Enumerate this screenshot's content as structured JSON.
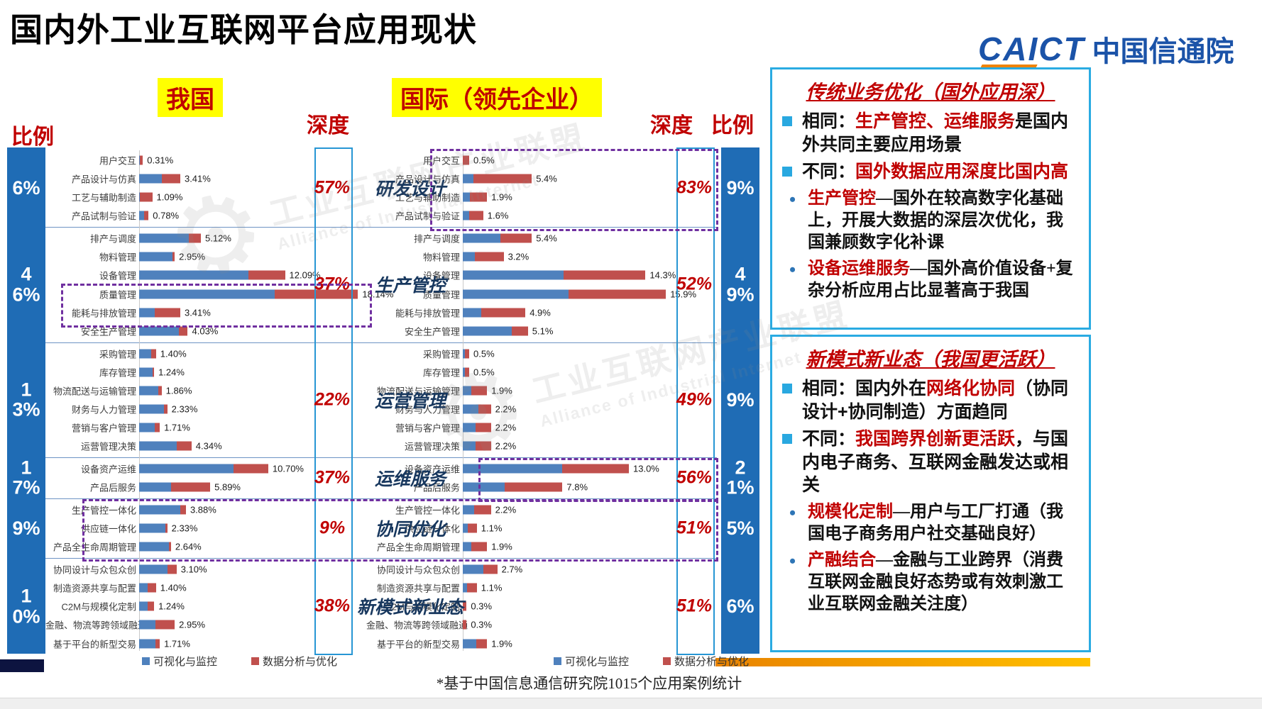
{
  "title": "国内外工业互联网平台应用现状",
  "logo": {
    "caict": "CAICT",
    "cn": "中国信通院"
  },
  "headers": {
    "china": "我国",
    "intl": "国际（领先企业）",
    "ratio": "比例",
    "depth": "深度"
  },
  "legend": {
    "viz": "可视化与监控",
    "ana": "数据分析与优化"
  },
  "footnote": "*基于中国信息通信研究院1015个应用案例统计",
  "watermark": {
    "line1": "工业互联网产业联盟",
    "line2": "Alliance of Industrial Internet"
  },
  "colors": {
    "bar_blue": "#4f81bd",
    "bar_red": "#c0504d",
    "ratio_col": "#1f6cb5",
    "depth_border": "#2796d4",
    "dashed": "#7030a0",
    "accent_red": "#c00000",
    "panel_border": "#2aabe2",
    "highlight_yellow": "#ffff00",
    "category_navy": "#17375e"
  },
  "chart_data": {
    "type": "bar",
    "unit": "%",
    "orientation": "horizontal",
    "series_names": [
      "可视化与监控",
      "数据分析与优化"
    ],
    "charts": [
      "我国",
      "国际（领先企业）"
    ],
    "groups": [
      {
        "name": "研发设计",
        "ratio_cn": "6%",
        "depth_cn": "57%",
        "depth_intl": "83%",
        "ratio_intl": "9%",
        "rows": [
          {
            "label": "用户交互",
            "cn": 0.31,
            "cn_d": "0.31%",
            "cn_b": 0.15,
            "intl": 0.5,
            "intl_d": "0.5%",
            "intl_b": 0.0
          },
          {
            "label": "产品设计与仿真",
            "cn": 3.41,
            "cn_d": "3.41%",
            "cn_b": 0.55,
            "intl": 5.4,
            "intl_d": "5.4%",
            "intl_b": 0.15
          },
          {
            "label": "工艺与辅助制造",
            "cn": 1.09,
            "cn_d": "1.09%",
            "cn_b": 0.05,
            "intl": 1.9,
            "intl_d": "1.9%",
            "intl_b": 0.3
          },
          {
            "label": "产品试制与验证",
            "cn": 0.78,
            "cn_d": "0.78%",
            "cn_b": 0.5,
            "intl": 1.6,
            "intl_d": "1.6%",
            "intl_b": 0.3
          }
        ]
      },
      {
        "name": "生产管控",
        "ratio_cn": "46%",
        "depth_cn": "37%",
        "depth_intl": "52%",
        "ratio_intl": "49%",
        "rows": [
          {
            "label": "排产与调度",
            "cn": 5.12,
            "cn_d": "5.12%",
            "cn_b": 0.8,
            "intl": 5.4,
            "intl_d": "5.4%",
            "intl_b": 0.55
          },
          {
            "label": "物料管理",
            "cn": 2.95,
            "cn_d": "2.95%",
            "cn_b": 0.93,
            "intl": 3.2,
            "intl_d": "3.2%",
            "intl_b": 0.3
          },
          {
            "label": "设备管理",
            "cn": 12.09,
            "cn_d": "12.09%",
            "cn_b": 0.75,
            "intl": 14.3,
            "intl_d": "14.3%",
            "intl_b": 0.55
          },
          {
            "label": "质量管理",
            "cn": 18.14,
            "cn_d": "18.14%",
            "cn_b": 0.62,
            "intl": 15.9,
            "intl_d": "15.9%",
            "intl_b": 0.52
          },
          {
            "label": "能耗与排放管理",
            "cn": 3.41,
            "cn_d": "3.41%",
            "cn_b": 0.38,
            "intl": 4.9,
            "intl_d": "4.9%",
            "intl_b": 0.3
          },
          {
            "label": "安全生产管理",
            "cn": 4.03,
            "cn_d": "4.03%",
            "cn_b": 0.82,
            "intl": 5.1,
            "intl_d": "5.1%",
            "intl_b": 0.75
          }
        ]
      },
      {
        "name": "运营管理",
        "ratio_cn": "13%",
        "depth_cn": "22%",
        "depth_intl": "49%",
        "ratio_intl": "9%",
        "rows": [
          {
            "label": "采购管理",
            "cn": 1.4,
            "cn_d": "1.40%",
            "cn_b": 0.7,
            "intl": 0.5,
            "intl_d": "0.5%",
            "intl_b": 0.35
          },
          {
            "label": "库存管理",
            "cn": 1.24,
            "cn_d": "1.24%",
            "cn_b": 0.88,
            "intl": 0.5,
            "intl_d": "0.5%",
            "intl_b": 0.35
          },
          {
            "label": "物流配送与运输管理",
            "cn": 1.86,
            "cn_d": "1.86%",
            "cn_b": 0.85,
            "intl": 1.9,
            "intl_d": "1.9%",
            "intl_b": 0.35
          },
          {
            "label": "财务与人力管理",
            "cn": 2.33,
            "cn_d": "2.33%",
            "cn_b": 0.88,
            "intl": 2.2,
            "intl_d": "2.2%",
            "intl_b": 0.55
          },
          {
            "label": "营销与客户管理",
            "cn": 1.71,
            "cn_d": "1.71%",
            "cn_b": 0.75,
            "intl": 2.2,
            "intl_d": "2.2%",
            "intl_b": 0.45
          },
          {
            "label": "运营管理决策",
            "cn": 4.34,
            "cn_d": "4.34%",
            "cn_b": 0.72,
            "intl": 2.2,
            "intl_d": "2.2%",
            "intl_b": 0.45
          }
        ]
      },
      {
        "name": "运维服务",
        "ratio_cn": "17%",
        "depth_cn": "37%",
        "depth_intl": "56%",
        "ratio_intl": "21%",
        "rows": [
          {
            "label": "设备资产运维",
            "cn": 10.7,
            "cn_d": "10.70%",
            "cn_b": 0.73,
            "intl": 13.0,
            "intl_d": "13.0%",
            "intl_b": 0.6
          },
          {
            "label": "产品后服务",
            "cn": 5.89,
            "cn_d": "5.89%",
            "cn_b": 0.45,
            "intl": 7.8,
            "intl_d": "7.8%",
            "intl_b": 0.42
          }
        ]
      },
      {
        "name": "协同优化",
        "ratio_cn": "9%",
        "depth_cn": "9%",
        "depth_intl": "51%",
        "ratio_intl": "5%",
        "rows": [
          {
            "label": "生产管控一体化",
            "cn": 3.88,
            "cn_d": "3.88%",
            "cn_b": 0.88,
            "intl": 2.2,
            "intl_d": "2.2%",
            "intl_b": 0.4
          },
          {
            "label": "供应链一体化",
            "cn": 2.33,
            "cn_d": "2.33%",
            "cn_b": 0.93,
            "intl": 1.1,
            "intl_d": "1.1%",
            "intl_b": 0.35
          },
          {
            "label": "产品全生命周期管理",
            "cn": 2.64,
            "cn_d": "2.64%",
            "cn_b": 0.93,
            "intl": 1.9,
            "intl_d": "1.9%",
            "intl_b": 0.35
          }
        ]
      },
      {
        "name": "新模式新业态",
        "ratio_cn": "10%",
        "depth_cn": "38%",
        "depth_intl": "51%",
        "ratio_intl": "6%",
        "rows": [
          {
            "label": "协同设计与众包众创",
            "cn": 3.1,
            "cn_d": "3.10%",
            "cn_b": 0.75,
            "intl": 2.7,
            "intl_d": "2.7%",
            "intl_b": 0.6
          },
          {
            "label": "制造资源共享与配置",
            "cn": 1.4,
            "cn_d": "1.40%",
            "cn_b": 0.5,
            "intl": 1.1,
            "intl_d": "1.1%",
            "intl_b": 0.3
          },
          {
            "label": "C2M与规模化定制",
            "cn": 1.24,
            "cn_d": "1.24%",
            "cn_b": 0.55,
            "intl": 0.3,
            "intl_d": "0.3%",
            "intl_b": 0.0
          },
          {
            "label": "金融、物流等跨领域融通",
            "cn": 2.95,
            "cn_d": "2.95%",
            "cn_b": 0.45,
            "intl": 0.3,
            "intl_d": "0.3%",
            "intl_b": 0.0
          },
          {
            "label": "基于平台的新型交易",
            "cn": 1.71,
            "cn_d": "1.71%",
            "cn_b": 0.8,
            "intl": 1.9,
            "intl_d": "1.9%",
            "intl_b": 0.55
          }
        ]
      }
    ]
  },
  "panels": [
    {
      "title": "传统业务优化（国外应用深）",
      "bullets": [
        {
          "type": "square",
          "segs": [
            [
              "相同：",
              "k"
            ],
            [
              "生产管控、运维服务",
              "r"
            ],
            [
              "是国内外共同主要应用场景",
              "k"
            ]
          ]
        },
        {
          "type": "square",
          "segs": [
            [
              "不同：",
              "k"
            ],
            [
              "国外数据应用深度比国内高",
              "r"
            ]
          ]
        },
        {
          "type": "dot",
          "segs": [
            [
              "生产管控",
              "r"
            ],
            [
              "—国外在较高数字化基础上，开展大数据的深层次优化，我国兼顾数字化补课",
              "k"
            ]
          ]
        },
        {
          "type": "dot",
          "segs": [
            [
              "设备运维服务",
              "r"
            ],
            [
              "—国外高价值设备+复杂分析应用占比显著高于我国",
              "k"
            ]
          ]
        }
      ]
    },
    {
      "title": "新模式新业态（我国更活跃）",
      "bullets": [
        {
          "type": "square",
          "segs": [
            [
              "相同：国内外在",
              "k"
            ],
            [
              "网络化协同",
              "r"
            ],
            [
              "（协同设计+协同制造）方面趋同",
              "k"
            ]
          ]
        },
        {
          "type": "square",
          "segs": [
            [
              "不同：",
              "k"
            ],
            [
              "我国跨界创新更活跃",
              "r"
            ],
            [
              "，与国内电子商务、互联网金融发达或相关",
              "k"
            ]
          ]
        },
        {
          "type": "dot",
          "segs": [
            [
              "规模化定制",
              "r"
            ],
            [
              "—用户与工厂打通（我国电子商务用户社交基础良好）",
              "k"
            ]
          ]
        },
        {
          "type": "dot",
          "segs": [
            [
              "产融结合",
              "r"
            ],
            [
              "—金融与工业跨界（消费互联网金融良好态势或有效刺激工业互联网金融关注度）",
              "k"
            ]
          ]
        }
      ]
    }
  ]
}
